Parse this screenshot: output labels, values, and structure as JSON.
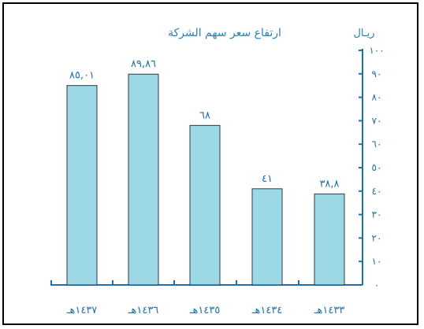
{
  "chart_data": {
    "type": "bar",
    "title": "ارتفاع سعر سهم الشركة",
    "ylabel": "ريـال",
    "xlabel": "",
    "categories": [
      "١٤٣٧هـ",
      "١٤٣٦هـ",
      "١٤٣٥هـ",
      "١٤٣٤هـ",
      "١٤٣٣هـ"
    ],
    "values": [
      85.01,
      89.86,
      68,
      41,
      38.8
    ],
    "value_labels": [
      "٨٥,٠١",
      "٨٩,٨٦",
      "٦٨",
      "٤١",
      "٣٨,٨"
    ],
    "ylim": [
      0,
      100
    ],
    "yticks": [
      0,
      10,
      20,
      30,
      40,
      50,
      60,
      70,
      80,
      90,
      100
    ],
    "ytick_labels": [
      "٠",
      "١٠",
      "٢٠",
      "٣٠",
      "٤٠",
      "٥٠",
      "٦٠",
      "٧٠",
      "٨٠",
      "٩٠",
      "١٠٠"
    ],
    "grid": false,
    "axis_side": "right",
    "colors": {
      "bar_fill": "#9dd8e6",
      "bar_stroke": "#2b3a4a",
      "axis": "#1f6fb0",
      "text": "#1e6fa8"
    }
  }
}
